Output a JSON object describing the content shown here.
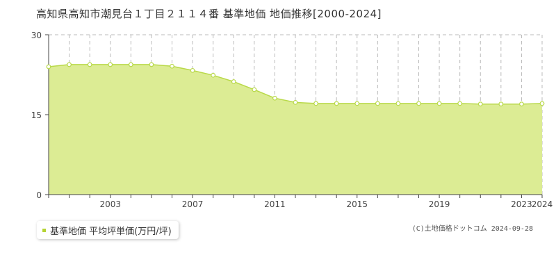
{
  "title": "高知県高知市潮見台１丁目２１１４番 基準地価 地価推移[2000-2024]",
  "legend": {
    "label": "基準地価 平均坪単価(万円/坪)",
    "color": "#b5d334"
  },
  "credit": "(C)土地価格ドットコム 2024-09-28",
  "colors": {
    "fill": "#dcec94",
    "line": "#b9d94a",
    "grid": "#bbbbbb"
  },
  "chart_data": {
    "type": "area",
    "title": "高知県高知市潮見台１丁目２１１４番 基準地価 地価推移[2000-2024]",
    "xlabel": "",
    "ylabel": "",
    "ylim": [
      0,
      30
    ],
    "yticks": [
      0,
      15,
      30
    ],
    "xlim": [
      2000,
      2024
    ],
    "xticks": [
      2003,
      2007,
      2011,
      2015,
      2019,
      2023,
      2024
    ],
    "grid": true,
    "legend_position": "bottom-left",
    "series": [
      {
        "name": "基準地価 平均坪単価(万円/坪)",
        "x": [
          2000,
          2001,
          2002,
          2003,
          2004,
          2005,
          2006,
          2007,
          2008,
          2009,
          2010,
          2011,
          2012,
          2013,
          2014,
          2015,
          2016,
          2017,
          2018,
          2019,
          2020,
          2021,
          2022,
          2023,
          2024
        ],
        "values": [
          24.0,
          24.4,
          24.4,
          24.4,
          24.4,
          24.4,
          24.1,
          23.3,
          22.4,
          21.2,
          19.7,
          18.1,
          17.3,
          17.1,
          17.1,
          17.1,
          17.1,
          17.1,
          17.1,
          17.1,
          17.1,
          17.0,
          17.0,
          17.0,
          17.1
        ]
      }
    ]
  }
}
